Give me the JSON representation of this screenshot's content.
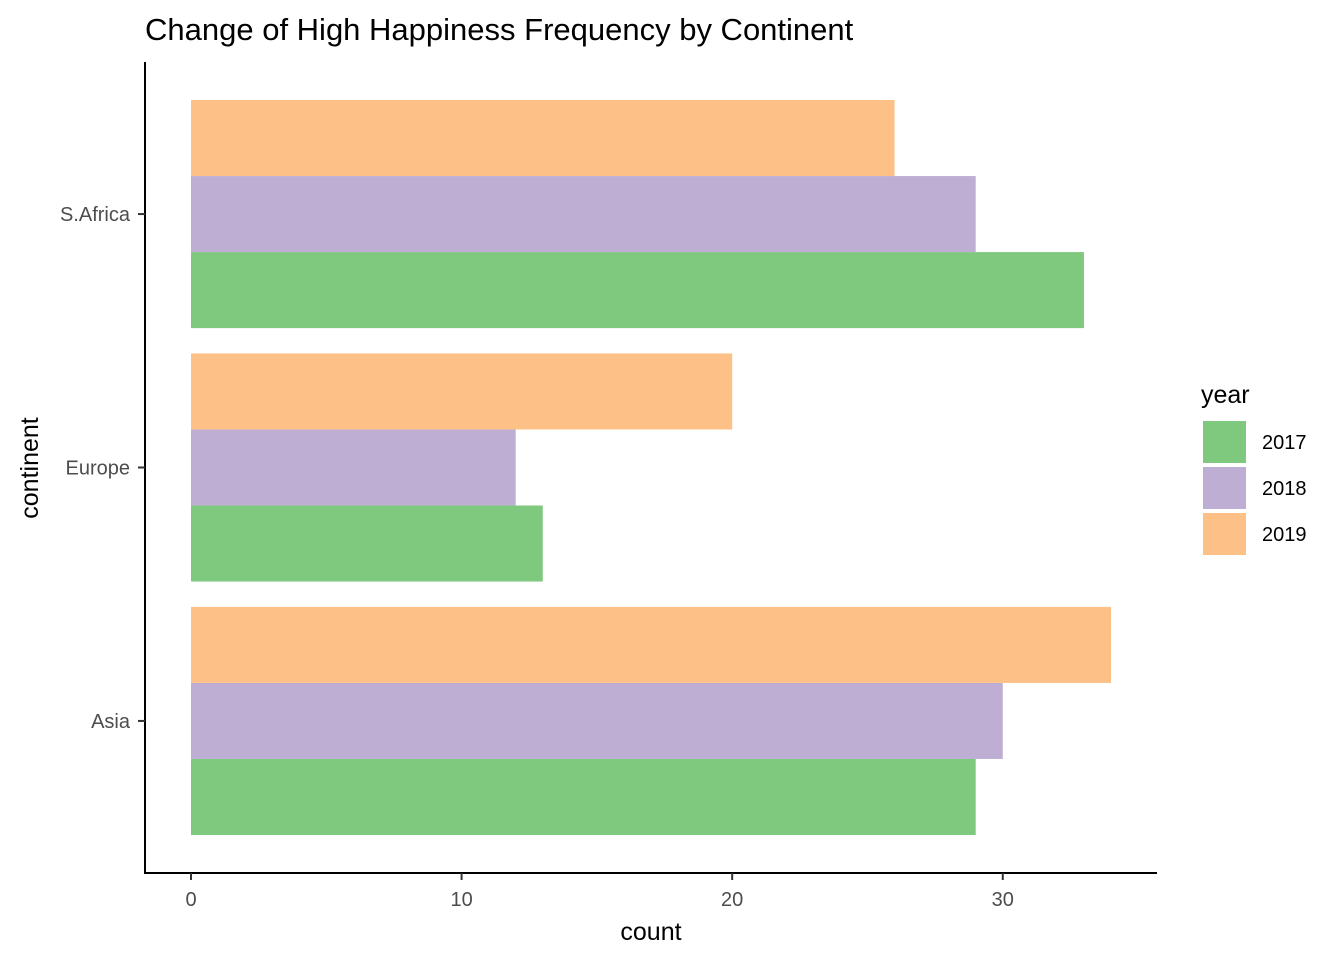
{
  "chart_data": {
    "type": "bar",
    "orientation": "horizontal",
    "title": "Change of High Happiness Frequency by Continent",
    "xlabel": "count",
    "ylabel": "continent",
    "categories": [
      "Asia",
      "Europe",
      "S.Africa"
    ],
    "series": [
      {
        "name": "2017",
        "color": "#7FC97F",
        "values": [
          29,
          13,
          33
        ]
      },
      {
        "name": "2018",
        "color": "#BEAED4",
        "values": [
          30,
          12,
          29
        ]
      },
      {
        "name": "2019",
        "color": "#FDC086",
        "values": [
          34,
          20,
          26
        ]
      }
    ],
    "xlim": [
      -1.7,
      35.7
    ],
    "xticks": [
      "0",
      "10",
      "20",
      "30"
    ],
    "xtick_values": [
      0,
      10,
      20,
      30
    ],
    "grid": false,
    "legend": {
      "title": "year",
      "position": "right"
    }
  }
}
